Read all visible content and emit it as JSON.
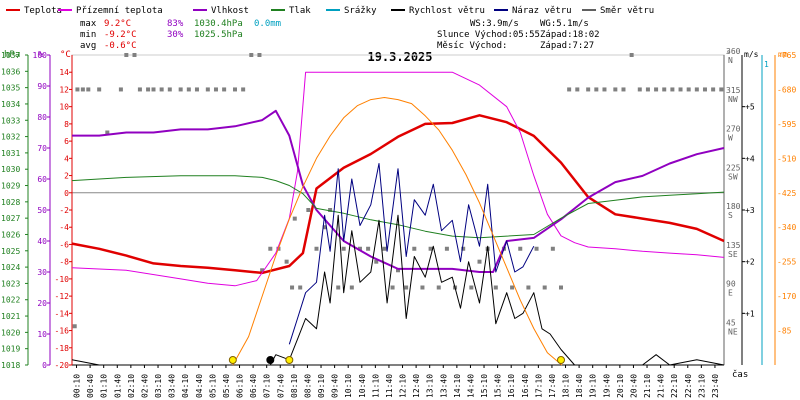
{
  "chart_data": {
    "type": "line",
    "title": "19.3.2025",
    "legend": [
      {
        "label": "Teplota",
        "color": "#e00000"
      },
      {
        "label": "Přízemní teplota",
        "color": "#e000e0"
      },
      {
        "label": "Vlhkost",
        "color": "#9000c0"
      },
      {
        "label": "Tlak",
        "color": "#208020"
      },
      {
        "label": "Srážky",
        "color": "#00a0c0"
      },
      {
        "label": "Rychlost větru",
        "color": "#000000"
      },
      {
        "label": "Náraz větru",
        "color": "#000080"
      },
      {
        "label": "Směr větru",
        "color": "#606060"
      }
    ],
    "stats": {
      "max_label": "max",
      "max_temp": "9.2°C",
      "max_hum": "83%",
      "max_press": "1030.4hPa",
      "max_rain": "0.0mm",
      "min_label": "min",
      "min_temp": "-9.2°C",
      "min_hum": "30%",
      "min_press": "1025.5hPa",
      "avg_label": "avg",
      "avg_temp": "-0.6°C",
      "ws": "WS:3.9m/s",
      "wg": "WG:5.1m/s",
      "sun": "Slunce Východ:05:55",
      "sun_set": "Západ:18:02",
      "moon": "Měsíc  Východ:",
      "moon_set": "Západ:7:27"
    },
    "axes": {
      "press_unit": "hPa",
      "hum_unit": "%",
      "temp_unit": "°C",
      "dir_unit": "°",
      "wind_unit": "m/s",
      "rain_unit": "mm",
      "x_unit": "čas",
      "press_ticks": [
        1018,
        1019,
        1020,
        1021,
        1022,
        1023,
        1024,
        1025,
        1026,
        1027,
        1028,
        1029,
        1030,
        1031,
        1032,
        1033,
        1034,
        1035,
        1036,
        1037
      ],
      "hum_ticks": [
        0,
        10,
        20,
        30,
        40,
        50,
        60,
        70,
        80,
        90,
        100
      ],
      "temp_ticks": [
        -20,
        -18,
        -16,
        -14,
        -12,
        -10,
        -8,
        -6,
        -4,
        -2,
        0,
        2,
        4,
        6,
        8,
        10,
        12,
        14
      ],
      "dir_ticks": [
        {
          "deg": "45",
          "lab": "NE",
          "v": 45
        },
        {
          "deg": "90",
          "lab": "E",
          "v": 90
        },
        {
          "deg": "135",
          "lab": "SE",
          "v": 135
        },
        {
          "deg": "180",
          "lab": "S",
          "v": 180
        },
        {
          "deg": "225",
          "lab": "SW",
          "v": 225
        },
        {
          "deg": "270",
          "lab": "W",
          "v": 270
        },
        {
          "deg": "315",
          "lab": "NW",
          "v": 315
        },
        {
          "deg": "360",
          "lab": "N",
          "v": 360
        }
      ],
      "wind_ticks": [
        1,
        2,
        3,
        4,
        5
      ],
      "rain_ticks": [
        85,
        170,
        255,
        340,
        425,
        510,
        595,
        680,
        765
      ],
      "wind_top_label": "1",
      "x_ticks": [
        "00:10",
        "00:40",
        "01:10",
        "01:40",
        "02:10",
        "02:40",
        "03:10",
        "03:40",
        "04:10",
        "04:40",
        "05:10",
        "05:40",
        "06:10",
        "06:40",
        "07:10",
        "07:40",
        "08:10",
        "08:40",
        "09:10",
        "09:40",
        "10:10",
        "10:40",
        "11:10",
        "11:40",
        "12:10",
        "12:40",
        "13:10",
        "13:40",
        "14:10",
        "14:40",
        "15:10",
        "15:40",
        "16:10",
        "16:40",
        "17:10",
        "17:40",
        "18:10",
        "18:40",
        "19:10",
        "19:40",
        "20:10",
        "20:40",
        "21:10",
        "21:40",
        "22:10",
        "22:40",
        "23:10",
        "23:40"
      ]
    },
    "ranges": {
      "temp": [
        -20,
        16
      ],
      "press": [
        1018,
        1037
      ],
      "hum": [
        0,
        100
      ],
      "dir": [
        0,
        360
      ],
      "wind": [
        0,
        6
      ],
      "sun": [
        0,
        765
      ]
    },
    "series": [
      {
        "name": "Teplota",
        "color": "#e00000",
        "width": 2.5,
        "axis": "temp",
        "x": [
          0,
          1,
          2,
          3,
          4,
          5,
          6,
          7,
          8,
          8.5,
          9,
          10,
          11,
          12,
          13,
          14,
          15,
          16,
          17,
          18,
          19,
          20,
          21,
          22,
          23,
          24
        ],
        "y": [
          -5.9,
          -6.5,
          -7.3,
          -8.2,
          -8.5,
          -8.7,
          -9.0,
          -9.3,
          -8.5,
          -7.0,
          0.5,
          2.9,
          4.5,
          6.5,
          8.0,
          8.1,
          9.0,
          8.2,
          6.6,
          3.5,
          -0.5,
          -2.5,
          -3.0,
          -3.5,
          -4.2,
          -5.6
        ]
      },
      {
        "name": "Přízemní teplota",
        "color": "#e000e0",
        "width": 1,
        "axis": "temp",
        "x": [
          0,
          2,
          4,
          5,
          6,
          6.8,
          7.5,
          8,
          8.3,
          8.6,
          9,
          10,
          12,
          14,
          15,
          16,
          16.5,
          17,
          17.5,
          18,
          18.5,
          19,
          20,
          21,
          22,
          23,
          24
        ],
        "y": [
          -8.7,
          -9.0,
          -10.0,
          -10.5,
          -10.8,
          -10.2,
          -7.0,
          -3.0,
          2.5,
          14.0,
          14.0,
          14.0,
          14.0,
          14.0,
          12.5,
          10.0,
          7.0,
          2.0,
          -2.5,
          -5.0,
          -5.8,
          -6.3,
          -6.5,
          -6.8,
          -7.0,
          -7.2,
          -7.5
        ]
      },
      {
        "name": "Vlhkost",
        "color": "#9000c0",
        "width": 2,
        "axis": "hum",
        "x": [
          0,
          1,
          2,
          3,
          4,
          5,
          6,
          7,
          7.5,
          8,
          8.5,
          9,
          10,
          11,
          11.5,
          12,
          13,
          14,
          15,
          15.5,
          16,
          17,
          18,
          19,
          20,
          21,
          22,
          23,
          24
        ],
        "y": [
          74,
          74,
          75,
          75,
          76,
          76,
          77,
          79,
          82,
          74,
          58,
          50,
          40,
          35,
          33,
          31,
          31,
          31,
          30,
          30,
          40,
          41,
          47,
          54,
          59,
          61,
          65,
          68,
          70
        ]
      },
      {
        "name": "Tlak",
        "color": "#208020",
        "width": 1,
        "axis": "press",
        "x": [
          0,
          2,
          4,
          6,
          7,
          7.5,
          8,
          8.5,
          9,
          10,
          11,
          12,
          13,
          14,
          15,
          16,
          17,
          18,
          19,
          20,
          21,
          22,
          23,
          24
        ],
        "y": [
          1029.3,
          1029.5,
          1029.6,
          1029.6,
          1029.5,
          1029.3,
          1029.0,
          1028.5,
          1027.6,
          1027.3,
          1026.9,
          1026.6,
          1026.2,
          1025.9,
          1025.8,
          1025.9,
          1026.0,
          1027.0,
          1027.9,
          1028.1,
          1028.3,
          1028.4,
          1028.5,
          1028.6
        ]
      },
      {
        "name": "Rychlost větru",
        "color": "#000000",
        "width": 1,
        "axis": "wind",
        "x": [
          0,
          1,
          2,
          3,
          4,
          5,
          6,
          7,
          7.3,
          7.5,
          8,
          8.3,
          8.6,
          9,
          9.3,
          9.5,
          9.8,
          10,
          10.3,
          10.6,
          11,
          11.3,
          11.6,
          12,
          12.3,
          12.6,
          13,
          13.3,
          13.6,
          14,
          14.3,
          14.6,
          15,
          15.3,
          15.6,
          16,
          16.3,
          16.6,
          17,
          17.3,
          17.6,
          18,
          18.5,
          19,
          20,
          21,
          21.5,
          22,
          23,
          24
        ],
        "y": [
          0.1,
          0,
          0,
          0,
          0,
          0,
          0,
          0,
          0,
          0.2,
          0.1,
          0.5,
          0.9,
          0.7,
          1.8,
          1.2,
          2.9,
          1.4,
          2.6,
          1.6,
          1.8,
          2.8,
          1.2,
          2.9,
          0.9,
          2.1,
          1.7,
          2.3,
          1.6,
          1.7,
          1.1,
          2.0,
          1.2,
          2.3,
          0.8,
          1.4,
          0.9,
          1.0,
          1.4,
          0.7,
          0.6,
          0.3,
          0,
          0,
          0,
          0,
          0.2,
          0,
          0.1,
          0
        ]
      },
      {
        "name": "Náraz větru",
        "color": "#000080",
        "width": 1,
        "axis": "wind",
        "x": [
          8,
          8.3,
          8.6,
          9,
          9.3,
          9.5,
          9.8,
          10,
          10.3,
          10.6,
          11,
          11.3,
          11.6,
          12,
          12.3,
          12.6,
          13,
          13.3,
          13.6,
          14,
          14.3,
          14.6,
          15,
          15.3,
          15.6,
          16,
          16.3,
          16.6,
          17
        ],
        "y": [
          0.4,
          0.9,
          1.4,
          1.6,
          2.9,
          2.2,
          3.8,
          2.4,
          3.6,
          2.7,
          3.1,
          3.9,
          2.2,
          3.8,
          2.1,
          3.2,
          2.9,
          3.5,
          2.6,
          2.8,
          2.0,
          3.1,
          2.3,
          3.5,
          1.8,
          2.4,
          1.8,
          1.9,
          2.3
        ]
      },
      {
        "name": "Slunce",
        "color": "#ff8000",
        "width": 1,
        "axis": "sun",
        "x": [
          5.92,
          6.5,
          7,
          7.5,
          8,
          8.5,
          9,
          9.5,
          10,
          10.5,
          11,
          11.5,
          12,
          12.5,
          13,
          13.5,
          14,
          14.5,
          15,
          15.5,
          16,
          16.5,
          17,
          17.5,
          18.03
        ],
        "y": [
          0,
          70,
          170,
          270,
          360,
          440,
          510,
          565,
          610,
          640,
          655,
          660,
          655,
          645,
          615,
          580,
          530,
          470,
          400,
          320,
          240,
          160,
          90,
          30,
          0
        ]
      }
    ],
    "markers": [
      {
        "t": 5.92,
        "v": 0,
        "color": "#ffee00",
        "border": "#806000"
      },
      {
        "t": 8.0,
        "v": 0,
        "color": "#ffee00",
        "border": "#806000"
      },
      {
        "t": 7.3,
        "v": 0,
        "color": "#000000",
        "border": "#000000"
      },
      {
        "t": 18.0,
        "v": 0,
        "color": "#ffee00",
        "border": "#806000"
      }
    ],
    "wind_dir": [
      [
        0.2,
        320
      ],
      [
        0.4,
        320
      ],
      [
        0.6,
        320
      ],
      [
        1.0,
        320
      ],
      [
        1.3,
        270
      ],
      [
        1.8,
        320
      ],
      [
        2.0,
        360
      ],
      [
        2.3,
        360
      ],
      [
        2.5,
        320
      ],
      [
        2.8,
        320
      ],
      [
        3.0,
        320
      ],
      [
        3.3,
        320
      ],
      [
        3.6,
        320
      ],
      [
        4.0,
        320
      ],
      [
        4.3,
        320
      ],
      [
        4.6,
        320
      ],
      [
        5.0,
        320
      ],
      [
        5.3,
        320
      ],
      [
        5.6,
        320
      ],
      [
        6.0,
        320
      ],
      [
        6.3,
        320
      ],
      [
        6.6,
        360
      ],
      [
        6.9,
        360
      ],
      [
        7.3,
        135
      ],
      [
        7.6,
        135
      ],
      [
        7.9,
        120
      ],
      [
        8.1,
        90
      ],
      [
        8.4,
        90
      ],
      [
        8.7,
        180
      ],
      [
        9.0,
        135
      ],
      [
        9.3,
        160
      ],
      [
        9.5,
        180
      ],
      [
        9.8,
        90
      ],
      [
        10.0,
        135
      ],
      [
        10.3,
        90
      ],
      [
        10.6,
        135
      ],
      [
        10.9,
        135
      ],
      [
        11.2,
        120
      ],
      [
        11.5,
        135
      ],
      [
        11.8,
        90
      ],
      [
        12.0,
        110
      ],
      [
        12.3,
        90
      ],
      [
        12.6,
        135
      ],
      [
        12.9,
        90
      ],
      [
        13.2,
        135
      ],
      [
        13.5,
        90
      ],
      [
        13.8,
        135
      ],
      [
        14.1,
        90
      ],
      [
        14.4,
        135
      ],
      [
        14.7,
        90
      ],
      [
        15.0,
        120
      ],
      [
        15.3,
        135
      ],
      [
        15.6,
        90
      ],
      [
        15.9,
        135
      ],
      [
        16.2,
        90
      ],
      [
        16.5,
        135
      ],
      [
        16.8,
        90
      ],
      [
        17.1,
        135
      ],
      [
        17.4,
        90
      ],
      [
        17.7,
        135
      ],
      [
        18.0,
        90
      ],
      [
        18.3,
        320
      ],
      [
        18.6,
        320
      ],
      [
        19.0,
        320
      ],
      [
        19.3,
        320
      ],
      [
        19.6,
        320
      ],
      [
        20.0,
        320
      ],
      [
        20.3,
        320
      ],
      [
        20.6,
        360
      ],
      [
        20.9,
        320
      ],
      [
        21.2,
        320
      ],
      [
        21.5,
        320
      ],
      [
        21.8,
        320
      ],
      [
        22.1,
        320
      ],
      [
        22.4,
        320
      ],
      [
        22.7,
        320
      ],
      [
        23.0,
        320
      ],
      [
        23.3,
        320
      ],
      [
        23.6,
        320
      ],
      [
        23.9,
        320
      ],
      [
        0.1,
        45
      ],
      [
        7.0,
        110
      ],
      [
        8.2,
        170
      ]
    ]
  }
}
